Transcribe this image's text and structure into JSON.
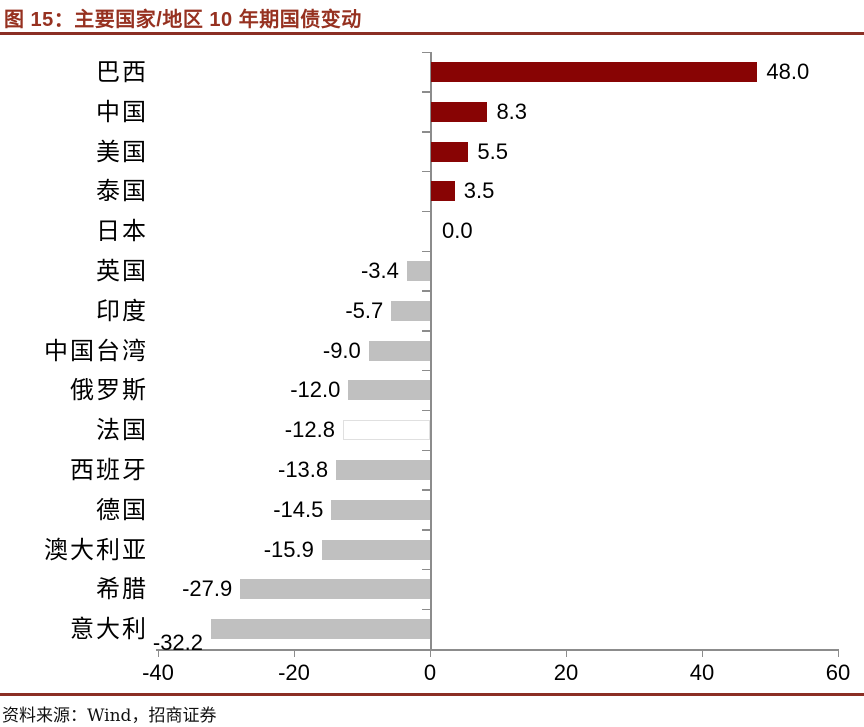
{
  "header": {
    "title": "图 15：主要国家/地区 10 年期国债变动"
  },
  "footer": {
    "source": "资料来源：Wind，招商证券"
  },
  "colors": {
    "title_red": "#963120",
    "rule_red": "#8B2E24",
    "bar_positive": "#880404",
    "bar_negative": "#C0C0C0",
    "highlight_fill": "#FFFFFF",
    "highlight_border": "#E0E0E0",
    "axis_gray": "#8C8C8C",
    "text_black": "#000000"
  },
  "chart_data": {
    "type": "bar",
    "orientation": "horizontal",
    "title": "图 15：主要国家/地区 10 年期国债变动",
    "xlabel": "",
    "ylabel": "",
    "categories": [
      "巴西",
      "中国",
      "美国",
      "泰国",
      "日本",
      "英国",
      "印度",
      "中国台湾",
      "俄罗斯",
      "法国",
      "西班牙",
      "德国",
      "澳大利亚",
      "希腊",
      "意大利"
    ],
    "values": [
      48.0,
      8.3,
      5.5,
      3.5,
      0.0,
      -3.4,
      -5.7,
      -9.0,
      -12.0,
      -12.8,
      -13.8,
      -14.5,
      -15.9,
      -27.9,
      -32.2
    ],
    "value_labels": [
      "48.0",
      "8.3",
      "5.5",
      "3.5",
      "0.0",
      "-3.4",
      "-5.7",
      "-9.0",
      "-12.0",
      "-12.8",
      "-13.8",
      "-14.5",
      "-15.9",
      "-27.9",
      "-32.2"
    ],
    "highlight_index": 9,
    "last_label_shifted_down": true,
    "xticks": [
      -40,
      -20,
      0,
      20,
      40,
      60
    ],
    "xlim": [
      -40,
      60
    ],
    "grid": false,
    "legend": false,
    "source": "资料来源：Wind，招商证券"
  }
}
